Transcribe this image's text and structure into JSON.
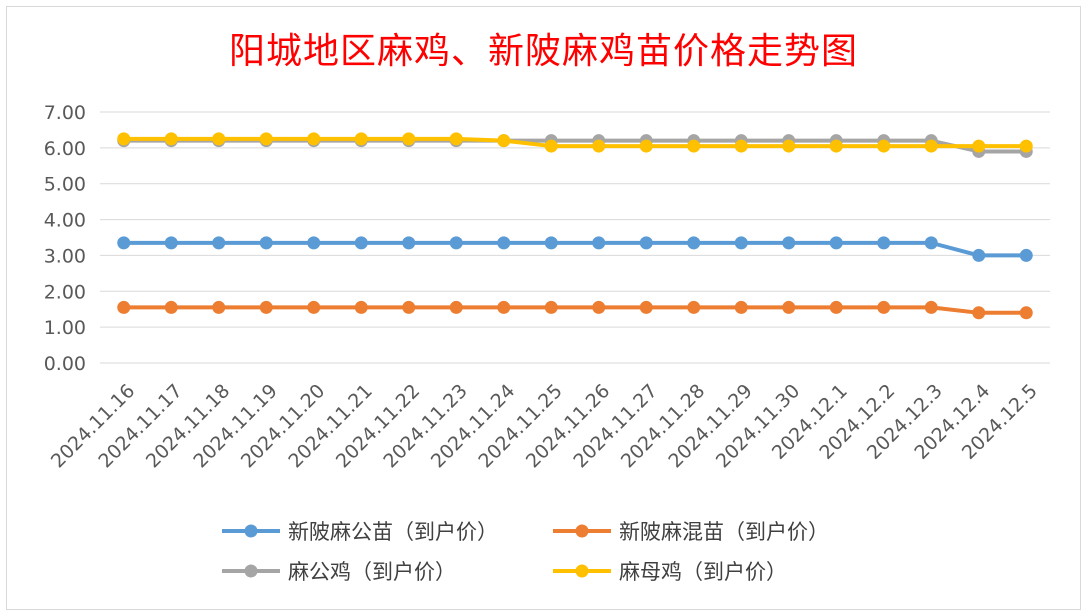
{
  "chart_data": {
    "type": "line",
    "title": "阳城地区麻鸡、新陂麻鸡苗价格走势图",
    "xlabel": "",
    "ylabel": "",
    "ylim": [
      0,
      7
    ],
    "yticks": [
      "0.00",
      "1.00",
      "2.00",
      "3.00",
      "4.00",
      "5.00",
      "6.00",
      "7.00"
    ],
    "grid": true,
    "legend": "bottom",
    "categories": [
      "2024.11.16",
      "2024.11.17",
      "2024.11.18",
      "2024.11.19",
      "2024.11.20",
      "2024.11.21",
      "2024.11.22",
      "2024.11.23",
      "2024.11.24",
      "2024.11.25",
      "2024.11.26",
      "2024.11.27",
      "2024.11.28",
      "2024.11.29",
      "2024.11.30",
      "2024.12.1",
      "2024.12.2",
      "2024.12.3",
      "2024.12.4",
      "2024.12.5"
    ],
    "series": [
      {
        "name": "新陂麻公苗（到户价）",
        "color": "#5b9bd5",
        "values": [
          3.35,
          3.35,
          3.35,
          3.35,
          3.35,
          3.35,
          3.35,
          3.35,
          3.35,
          3.35,
          3.35,
          3.35,
          3.35,
          3.35,
          3.35,
          3.35,
          3.35,
          3.35,
          3.0,
          3.0
        ]
      },
      {
        "name": "新陂麻混苗（到户价）",
        "color": "#ed7d31",
        "values": [
          1.55,
          1.55,
          1.55,
          1.55,
          1.55,
          1.55,
          1.55,
          1.55,
          1.55,
          1.55,
          1.55,
          1.55,
          1.55,
          1.55,
          1.55,
          1.55,
          1.55,
          1.55,
          1.4,
          1.4
        ]
      },
      {
        "name": "麻公鸡（到户价）",
        "color": "#a5a5a5",
        "values": [
          6.2,
          6.2,
          6.2,
          6.2,
          6.2,
          6.2,
          6.2,
          6.2,
          6.2,
          6.2,
          6.2,
          6.2,
          6.2,
          6.2,
          6.2,
          6.2,
          6.2,
          6.2,
          5.9,
          5.9
        ]
      },
      {
        "name": "麻母鸡（到户价）",
        "color": "#ffc000",
        "values": [
          6.25,
          6.25,
          6.25,
          6.25,
          6.25,
          6.25,
          6.25,
          6.25,
          6.2,
          6.05,
          6.05,
          6.05,
          6.05,
          6.05,
          6.05,
          6.05,
          6.05,
          6.05,
          6.05,
          6.05
        ]
      }
    ]
  }
}
